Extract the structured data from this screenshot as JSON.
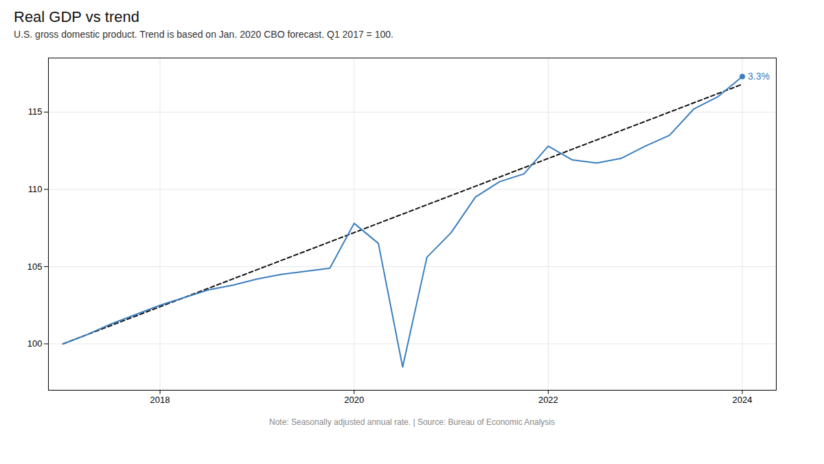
{
  "chart_data": {
    "type": "line",
    "title": "Real GDP vs trend",
    "subtitle": "U.S. gross domestic product. Trend is based on Jan. 2020 CBO forecast. Q1 2017 = 100.",
    "note": "Note: Seasonally adjusted annual rate. | Source: Bureau of Economic Analysis",
    "x": [
      2017.0,
      2017.25,
      2017.5,
      2017.75,
      2018.0,
      2018.25,
      2018.5,
      2018.75,
      2019.0,
      2019.25,
      2019.5,
      2019.75,
      2020.0,
      2020.25,
      2020.5,
      2020.75,
      2021.0,
      2021.25,
      2021.5,
      2021.75,
      2022.0,
      2022.25,
      2022.5,
      2022.75,
      2023.0,
      2023.25,
      2023.5,
      2023.75,
      2024.0
    ],
    "series": [
      {
        "color": "#111111",
        "line_style": "dashed",
        "values": [
          100.0,
          100.6,
          101.2,
          101.8,
          102.4,
          103.0,
          103.6,
          104.2,
          104.8,
          105.4,
          106.0,
          106.6,
          107.2,
          107.8,
          108.4,
          109.0,
          109.6,
          110.2,
          110.8,
          111.4,
          112.0,
          112.6,
          113.2,
          113.8,
          114.4,
          115.0,
          115.6,
          116.2,
          116.8
        ]
      },
      {
        "color": "#3a7ebf",
        "line_style": "solid",
        "values": [
          100.0,
          100.6,
          101.3,
          101.9,
          102.5,
          103.0,
          103.5,
          103.8,
          104.2,
          104.5,
          104.7,
          104.9,
          107.8,
          106.5,
          98.5,
          105.6,
          107.2,
          109.5,
          110.5,
          111.0,
          112.8,
          111.9,
          111.7,
          112.0,
          112.8,
          113.5,
          115.2,
          116.0,
          117.3
        ]
      }
    ],
    "annotations": [
      {
        "text": "3.3%",
        "x": 2024.0,
        "y": 117.3,
        "color": "#3a7ebf",
        "marker": "circle"
      }
    ],
    "xlim": [
      2016.85,
      2024.35
    ],
    "ylim": [
      97.0,
      118.5
    ],
    "xticks": [
      2018,
      2020,
      2022,
      2024
    ],
    "yticks": [
      100,
      105,
      110,
      115
    ],
    "grid": true
  }
}
